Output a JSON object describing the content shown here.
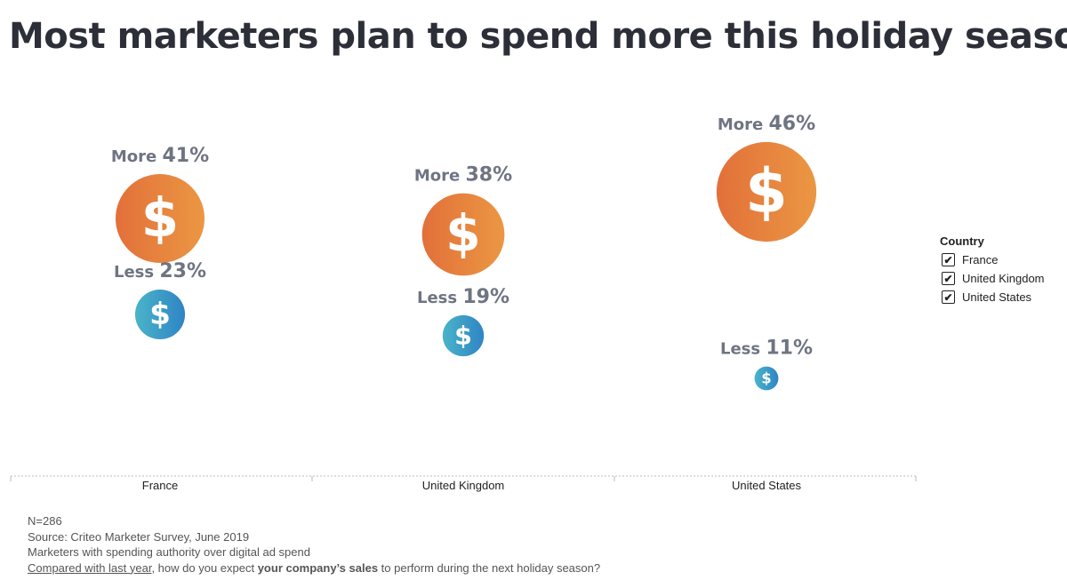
{
  "page": {
    "title": "Most marketers plan to spend more this holiday season"
  },
  "legend": {
    "title": "Country",
    "items": [
      {
        "label": "France",
        "checked": true,
        "checkmark": "✔"
      },
      {
        "label": "United Kingdom",
        "checked": true,
        "checkmark": "✔"
      },
      {
        "label": "United States",
        "checked": true,
        "checkmark": "✔"
      }
    ]
  },
  "notes": {
    "n": "N=286",
    "source": "Source: Criteo Marketer Survey, June 2019",
    "population": "Marketers with spending authority over digital ad spend",
    "question_underlined": "Compared with last year",
    "question_part1": ", how do you expect ",
    "question_bold": "your company’s sales",
    "question_part2": " to perform during the next holiday season?"
  },
  "chart_data": {
    "type": "scatter",
    "encoding": "bubble size and vertical position represent share of respondents",
    "categories": [
      "France",
      "United Kingdom",
      "United States"
    ],
    "icon": "dollar-sign-icon",
    "symbol": "$",
    "series": [
      {
        "name": "More",
        "values": [
          41,
          38,
          46
        ],
        "unit": "%",
        "color_start": "#e2703a",
        "color_end": "#eb9743"
      },
      {
        "name": "Less",
        "values": [
          23,
          19,
          11
        ],
        "unit": "%",
        "color_start": "#4ab4c8",
        "color_end": "#2f84c5"
      }
    ],
    "grid": false,
    "legend_position": "right"
  }
}
